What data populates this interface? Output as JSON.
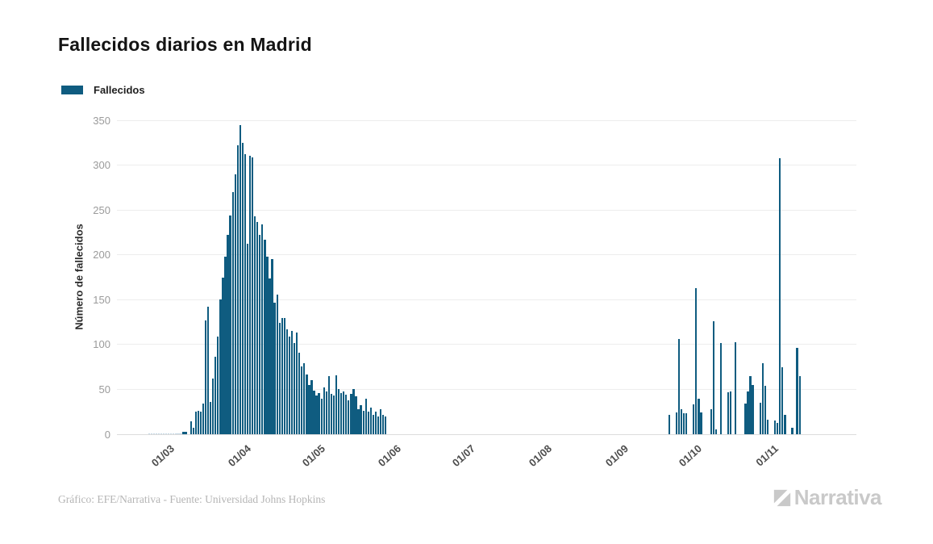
{
  "header": {
    "title": "Fallecidos diarios en Madrid"
  },
  "legend": {
    "label": "Fallecidos",
    "color": "#0f5c80"
  },
  "footer": {
    "credit": "Gráfico: EFE/Narrativa - Fuente: Universidad Johns Hopkins"
  },
  "logo": {
    "text": "Narrativa"
  },
  "chart_data": {
    "type": "bar",
    "title": "Fallecidos diarios en Madrid",
    "xlabel": "",
    "ylabel": "Número de fallecidos",
    "series_name": "Fallecidos",
    "bar_color": "#0f5c80",
    "faint_bar_color": "#c3d7e3",
    "grid_color": "#ededed",
    "axis_line_color": "#dcdcdc",
    "tick_label_color": "#9b9b9b",
    "grid": "on",
    "legend_position": "top-left",
    "ylim": [
      0,
      350
    ],
    "y_ticks": [
      0,
      50,
      100,
      150,
      200,
      250,
      300,
      350
    ],
    "x_domain": [
      "2020-02-09",
      "2020-12-05"
    ],
    "x_ticks": [
      {
        "date": "2020-03-01",
        "label": "01/03"
      },
      {
        "date": "2020-04-01",
        "label": "01/04"
      },
      {
        "date": "2020-05-01",
        "label": "01/05"
      },
      {
        "date": "2020-06-01",
        "label": "01/06"
      },
      {
        "date": "2020-07-01",
        "label": "01/07"
      },
      {
        "date": "2020-08-01",
        "label": "01/08"
      },
      {
        "date": "2020-09-01",
        "label": "01/09"
      },
      {
        "date": "2020-10-01",
        "label": "01/10"
      },
      {
        "date": "2020-11-01",
        "label": "01/11"
      }
    ],
    "start_date": "2020-02-22",
    "values": [
      1,
      1,
      1,
      1,
      1,
      1,
      1,
      1,
      1,
      1,
      1,
      1,
      1,
      1,
      3,
      3,
      0,
      14,
      7,
      25,
      26,
      25,
      34,
      127,
      142,
      36,
      62,
      86,
      109,
      150,
      175,
      198,
      222,
      244,
      270,
      290,
      322,
      345,
      325,
      312,
      212,
      310,
      309,
      243,
      237,
      222,
      234,
      217,
      198,
      174,
      195,
      147,
      156,
      124,
      130,
      130,
      117,
      109,
      115,
      102,
      113,
      91,
      76,
      79,
      67,
      55,
      60,
      49,
      43,
      46,
      40,
      52,
      48,
      65,
      45,
      43,
      66,
      50,
      46,
      48,
      44,
      38,
      45,
      50,
      42,
      28,
      32,
      26,
      40,
      25,
      30,
      22,
      25,
      20,
      28,
      22,
      20,
      0,
      0,
      0,
      0,
      0,
      0,
      0,
      0,
      0,
      0,
      0,
      0,
      0,
      0,
      0,
      0,
      0,
      0,
      0,
      0,
      0,
      0,
      0,
      0,
      0,
      0,
      0,
      0,
      0,
      0,
      0,
      0,
      0,
      0,
      0,
      0,
      0,
      0,
      0,
      0,
      0,
      0,
      0,
      0,
      0,
      0,
      0,
      0,
      0,
      0,
      0,
      0,
      0,
      0,
      0,
      0,
      0,
      0,
      0,
      0,
      0,
      0,
      0,
      0,
      0,
      0,
      0,
      0,
      0,
      0,
      0,
      0,
      0,
      0,
      0,
      0,
      0,
      0,
      0,
      0,
      0,
      0,
      0,
      0,
      0,
      0,
      0,
      0,
      0,
      0,
      0,
      0,
      0,
      0,
      0,
      0,
      0,
      0,
      0,
      0,
      0,
      0,
      0,
      0,
      0,
      0,
      0,
      0,
      0,
      0,
      0,
      0,
      0,
      0,
      22,
      0,
      0,
      24,
      106,
      28,
      23,
      23,
      0,
      0,
      33,
      163,
      40,
      24,
      0,
      0,
      0,
      28,
      126,
      5,
      0,
      102,
      0,
      0,
      47,
      48,
      0,
      103,
      0,
      0,
      0,
      34,
      48,
      65,
      55,
      0,
      0,
      35,
      79,
      54,
      16,
      0,
      0,
      15,
      13,
      308,
      75,
      22,
      0,
      0,
      7,
      0,
      96,
      65
    ]
  }
}
